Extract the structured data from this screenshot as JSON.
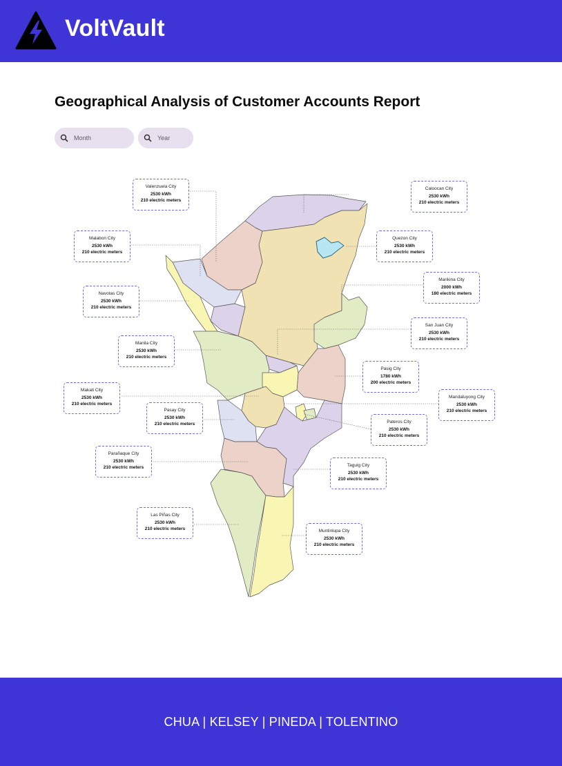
{
  "brand": {
    "name": "VoltVault",
    "logo_icon": "lightning-bolt-icon"
  },
  "page": {
    "title": "Geographical Analysis of Customer Accounts Report"
  },
  "filters": {
    "month": {
      "placeholder": "Month",
      "icon": "search-icon"
    },
    "year": {
      "placeholder": "Year",
      "icon": "search-icon"
    }
  },
  "cities": [
    {
      "name": "Valenzuela City",
      "kwh": "2530 kWh",
      "meters": "210 electric meters"
    },
    {
      "name": "Caloocan City",
      "kwh": "2530 kWh",
      "meters": "210 electric meters"
    },
    {
      "name": "Malabon City",
      "kwh": "2530 kWh",
      "meters": "210 electric meters"
    },
    {
      "name": "Quezon City",
      "kwh": "2530 kWh",
      "meters": "210 electric meters"
    },
    {
      "name": "Navotas City",
      "kwh": "2530 kWh",
      "meters": "210 electric meters"
    },
    {
      "name": "Marikina City",
      "kwh": "2000 kWh",
      "meters": "180 electric meters"
    },
    {
      "name": "San Juan City",
      "kwh": "2530 kWh",
      "meters": "210 electric meters"
    },
    {
      "name": "Manila City",
      "kwh": "2530 kWh",
      "meters": "210 electric meters"
    },
    {
      "name": "Pasig City",
      "kwh": "1780 kWh",
      "meters": "200 electric meters"
    },
    {
      "name": "Makati City",
      "kwh": "2530 kWh",
      "meters": "210 electric meters"
    },
    {
      "name": "Mandaluyong City",
      "kwh": "2530 kWh",
      "meters": "210 electric meters"
    },
    {
      "name": "Pasay City",
      "kwh": "2530 kWh",
      "meters": "210 electric meters"
    },
    {
      "name": "Pateros City",
      "kwh": "2530 kWh",
      "meters": "210 electric meters"
    },
    {
      "name": "Parañaque City",
      "kwh": "2530 kWh",
      "meters": "210 electric meters"
    },
    {
      "name": "Taguig City",
      "kwh": "2530 kWh",
      "meters": "210 electric meters"
    },
    {
      "name": "Las Piñas City",
      "kwh": "2530 kWh",
      "meters": "210 electric meters"
    },
    {
      "name": "Muntinlupa City",
      "kwh": "2530 kWh",
      "meters": "210 electric meters"
    }
  ],
  "colors": {
    "brand": "#3f35d6",
    "purple": "#dcd2ea",
    "pink": "#ecd2c8",
    "yellow": "#f1e2b3",
    "green": "#e1ebc4",
    "blue": "#dde1f1",
    "lightyellow": "#f9f6b4",
    "water": "#b9e6f3"
  },
  "footer": {
    "text": "CHUA | KELSEY | PINEDA | TOLENTINO"
  }
}
